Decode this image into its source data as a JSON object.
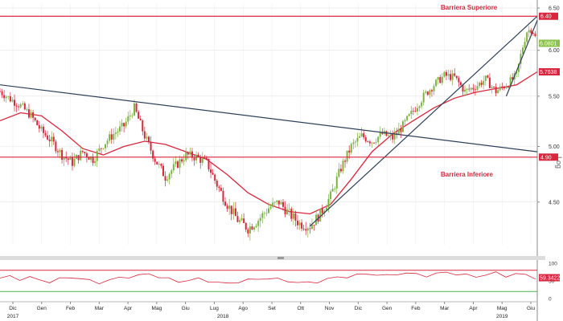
{
  "toolbar": {
    "expand_label": "⇱",
    "settings_label": "⚙"
  },
  "chart_data": [
    {
      "type": "candlestick",
      "scale": "log",
      "y_axis_label": "Log",
      "y_ticks": [
        "6.50",
        "6.00",
        "5.50",
        "5.00",
        "4.50"
      ],
      "ylim": [
        4.15,
        6.55
      ],
      "x_ticks": [
        "Dic",
        "Gen",
        "Feb",
        "Mar",
        "Apr",
        "Mag",
        "Giu",
        "Lug",
        "Ago",
        "Set",
        "Ott",
        "Nov",
        "Dic",
        "Gen",
        "Feb",
        "Mar",
        "Apr",
        "Mag",
        "Giu"
      ],
      "years": [
        "2017",
        "2018",
        "2019"
      ],
      "grid": true,
      "price_series": [
        [
          0,
          5.55
        ],
        [
          2,
          5.47
        ],
        [
          4,
          5.4
        ],
        [
          6,
          5.3
        ],
        [
          8,
          5.15
        ],
        [
          10,
          5.05
        ],
        [
          12,
          4.92
        ],
        [
          14,
          4.85
        ],
        [
          16,
          4.95
        ],
        [
          18,
          4.88
        ],
        [
          20,
          5.02
        ],
        [
          22,
          5.12
        ],
        [
          24,
          5.2
        ],
        [
          26,
          5.38
        ],
        [
          28,
          5.1
        ],
        [
          30,
          4.88
        ],
        [
          32,
          4.72
        ],
        [
          34,
          4.82
        ],
        [
          36,
          4.92
        ],
        [
          38,
          4.9
        ],
        [
          40,
          4.85
        ],
        [
          42,
          4.65
        ],
        [
          44,
          4.48
        ],
        [
          46,
          4.35
        ],
        [
          48,
          4.28
        ],
        [
          50,
          4.35
        ],
        [
          52,
          4.45
        ],
        [
          54,
          4.5
        ],
        [
          56,
          4.4
        ],
        [
          58,
          4.32
        ],
        [
          60,
          4.3
        ],
        [
          62,
          4.4
        ],
        [
          64,
          4.55
        ],
        [
          66,
          4.8
        ],
        [
          68,
          5.0
        ],
        [
          70,
          5.1
        ],
        [
          72,
          5.05
        ],
        [
          74,
          5.12
        ],
        [
          76,
          5.08
        ],
        [
          78,
          5.2
        ],
        [
          80,
          5.35
        ],
        [
          82,
          5.5
        ],
        [
          84,
          5.62
        ],
        [
          86,
          5.72
        ],
        [
          88,
          5.7
        ],
        [
          90,
          5.55
        ],
        [
          92,
          5.6
        ],
        [
          94,
          5.68
        ],
        [
          96,
          5.55
        ],
        [
          98,
          5.62
        ],
        [
          100,
          5.72
        ],
        [
          101,
          6.0
        ],
        [
          102,
          6.22
        ],
        [
          103,
          6.25
        ],
        [
          104,
          6.08
        ]
      ],
      "moving_average": [
        [
          0,
          5.25
        ],
        [
          4,
          5.33
        ],
        [
          8,
          5.3
        ],
        [
          12,
          5.15
        ],
        [
          16,
          4.98
        ],
        [
          20,
          4.92
        ],
        [
          24,
          5.0
        ],
        [
          28,
          5.05
        ],
        [
          32,
          5.02
        ],
        [
          36,
          4.95
        ],
        [
          40,
          4.88
        ],
        [
          44,
          4.74
        ],
        [
          48,
          4.58
        ],
        [
          52,
          4.48
        ],
        [
          56,
          4.42
        ],
        [
          60,
          4.4
        ],
        [
          64,
          4.48
        ],
        [
          68,
          4.7
        ],
        [
          72,
          4.95
        ],
        [
          76,
          5.12
        ],
        [
          80,
          5.25
        ],
        [
          84,
          5.38
        ],
        [
          88,
          5.48
        ],
        [
          92,
          5.54
        ],
        [
          96,
          5.58
        ],
        [
          100,
          5.62
        ],
        [
          104,
          5.76
        ]
      ],
      "levels": [
        {
          "name": "Barriera Superiore",
          "value": 6.4,
          "label": "6.40",
          "color": "#d7263d"
        },
        {
          "name": "Barriera Inferiore",
          "value": 4.9,
          "label": "4.90",
          "color": "#d7263d"
        }
      ],
      "trendlines": [
        {
          "from": [
            0,
            5.62
          ],
          "to": [
            104,
            4.95
          ],
          "color": "#2e4057"
        },
        {
          "from": [
            60,
            4.3
          ],
          "to": [
            104,
            6.4
          ],
          "color": "#2e4057"
        },
        {
          "from": [
            98,
            5.5
          ],
          "to": [
            104,
            6.35
          ],
          "color": "#2e4057"
        }
      ],
      "current_value_tags": [
        {
          "label": "6.0801",
          "value": 6.08,
          "color": "#8bc34a"
        },
        {
          "label": "5.7638",
          "value": 5.76,
          "color": "#d7263d"
        }
      ]
    },
    {
      "type": "line",
      "ylim": [
        0,
        100
      ],
      "y_ticks": [
        "100",
        "50",
        "0"
      ],
      "levels": [
        {
          "value": 80,
          "color": "#d7263d"
        },
        {
          "value": 20,
          "color": "#4caf50"
        }
      ],
      "series_color": "#d7263d",
      "last_value_tag": "59.3422",
      "values": [
        58,
        62,
        55,
        60,
        52,
        48,
        55,
        60,
        58,
        50,
        45,
        52,
        58,
        62,
        65,
        70,
        62,
        55,
        48,
        52,
        55,
        50,
        45,
        42,
        48,
        52,
        55,
        58,
        54,
        50,
        46,
        44,
        48,
        55,
        60,
        62,
        66,
        70,
        68,
        64,
        70,
        72,
        68,
        65,
        70,
        74,
        70,
        66,
        62,
        68,
        72,
        64,
        70,
        66,
        59
      ]
    }
  ]
}
